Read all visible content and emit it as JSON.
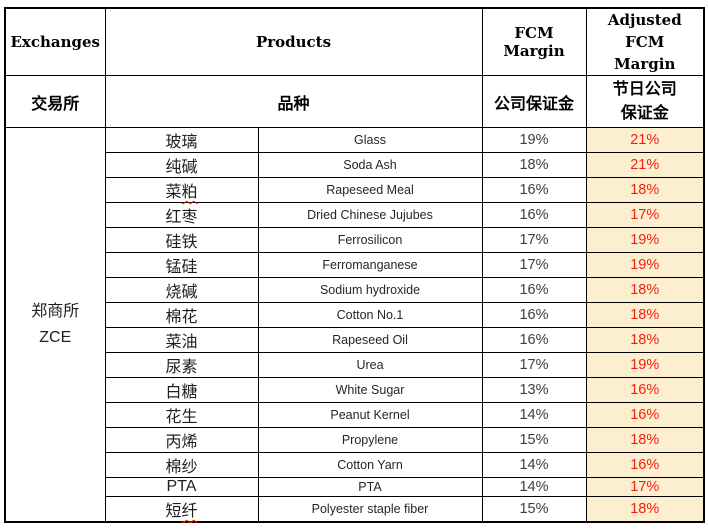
{
  "colors": {
    "highlight_bg": "#fcefd0",
    "highlight_text": "#f81e0e",
    "border": "#000000",
    "header_text": "#000000",
    "body_text": "#262626",
    "fcm_text": "#3d3d3d"
  },
  "header": {
    "exchanges_en": "Exchanges",
    "products_en": "Products",
    "fcm_en": "FCM Margin",
    "adjusted_en": "Adjusted FCM Margin",
    "exchanges_cn": "交易所",
    "products_cn": "品种",
    "fcm_cn": "公司保证金",
    "adjusted_cn": "节日公司保证金"
  },
  "exchange": {
    "name_cn": "郑商所",
    "code": "ZCE"
  },
  "rows": [
    {
      "cn": "玻璃",
      "en": "Glass",
      "fcm": "19%",
      "adjusted": "21%",
      "squiggle": false
    },
    {
      "cn": "纯碱",
      "en": "Soda Ash",
      "fcm": "18%",
      "adjusted": "21%",
      "squiggle": false
    },
    {
      "cn": "菜粕",
      "en": "Rapeseed Meal",
      "fcm": "16%",
      "adjusted": "18%",
      "squiggle": true
    },
    {
      "cn": "红枣",
      "en": "Dried Chinese Jujubes",
      "fcm": "16%",
      "adjusted": "17%",
      "squiggle": false
    },
    {
      "cn": "硅铁",
      "en": "Ferrosilicon",
      "fcm": "17%",
      "adjusted": "19%",
      "squiggle": false
    },
    {
      "cn": "锰硅",
      "en": "Ferromanganese",
      "fcm": "17%",
      "adjusted": "19%",
      "squiggle": false
    },
    {
      "cn": "烧碱",
      "en": "Sodium hydroxide",
      "fcm": "16%",
      "adjusted": "18%",
      "squiggle": false
    },
    {
      "cn": "棉花",
      "en": "Cotton No.1",
      "fcm": "16%",
      "adjusted": "18%",
      "squiggle": false
    },
    {
      "cn": "菜油",
      "en": "Rapeseed Oil",
      "fcm": "16%",
      "adjusted": "18%",
      "squiggle": false
    },
    {
      "cn": "尿素",
      "en": "Urea",
      "fcm": "17%",
      "adjusted": "19%",
      "squiggle": false
    },
    {
      "cn": "白糖",
      "en": "White Sugar",
      "fcm": "13%",
      "adjusted": "16%",
      "squiggle": false
    },
    {
      "cn": "花生",
      "en": "Peanut Kernel",
      "fcm": "14%",
      "adjusted": "16%",
      "squiggle": false
    },
    {
      "cn": "丙烯",
      "en": "Propylene",
      "fcm": "15%",
      "adjusted": "18%",
      "squiggle": false
    },
    {
      "cn": "棉纱",
      "en": "Cotton Yarn",
      "fcm": "14%",
      "adjusted": "16%",
      "squiggle": false
    },
    {
      "cn": "PTA",
      "en": "PTA",
      "fcm": "14%",
      "adjusted": "17%",
      "squiggle": false
    },
    {
      "cn": "短纤",
      "en": "Polyester staple fiber",
      "fcm": "15%",
      "adjusted": "18%",
      "squiggle": true
    }
  ]
}
